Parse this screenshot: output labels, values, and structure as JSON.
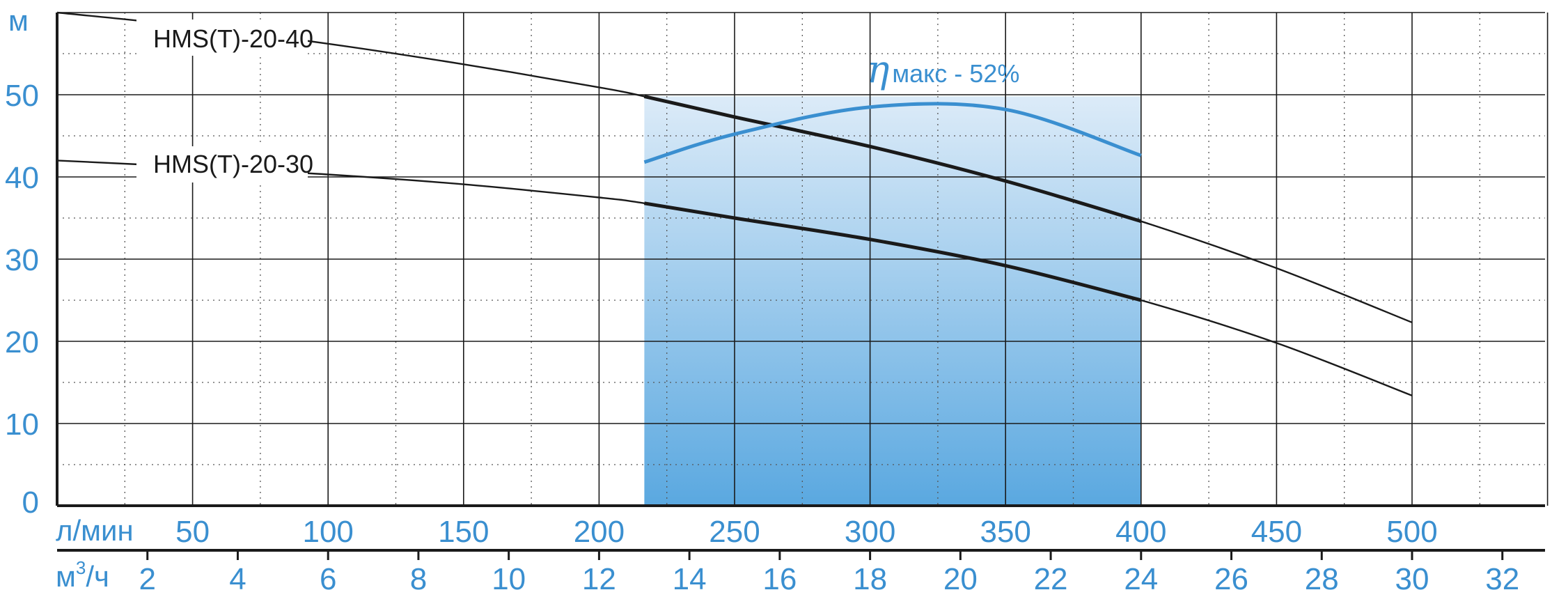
{
  "chart_data": {
    "type": "line",
    "y_unit": "м",
    "x_unit": "л/мин",
    "x2_unit_base": "м",
    "x2_unit_sup": "3",
    "x2_unit_tail": "/ч",
    "ylim": [
      0,
      60
    ],
    "xlim": [
      0,
      550
    ],
    "y_ticks": [
      0,
      10,
      20,
      30,
      40,
      50
    ],
    "x_ticks": [
      50,
      100,
      150,
      200,
      250,
      300,
      350,
      400,
      450,
      500
    ],
    "x2_ticks": [
      2,
      4,
      6,
      8,
      10,
      12,
      14,
      16,
      18,
      20,
      22,
      24,
      26,
      28,
      30,
      32
    ],
    "grid": true,
    "operating_range": [
      216.7,
      400
    ],
    "series": [
      {
        "name": "HMS(T)-20-40",
        "x": [
          0,
          50,
          100,
          150,
          200,
          216.7,
          250,
          300,
          350,
          400,
          450,
          500
        ],
        "y": [
          60,
          58.3,
          56.2,
          53.7,
          50.9,
          49.8,
          47.3,
          43.7,
          39.5,
          34.6,
          28.9,
          22.3
        ]
      },
      {
        "name": "HMS(T)-20-30",
        "x": [
          0,
          50,
          100,
          150,
          200,
          216.7,
          250,
          300,
          350,
          400,
          450,
          500
        ],
        "y": [
          42.0,
          41.2,
          40.3,
          39.1,
          37.5,
          36.8,
          35.0,
          32.4,
          29.2,
          25.0,
          19.8,
          13.4
        ]
      }
    ],
    "efficiency": {
      "symbol": "η",
      "label": "макс - 52%",
      "x": [
        216.7,
        250,
        300,
        350,
        400
      ],
      "y": [
        41.8,
        45.2,
        48.5,
        48.2,
        42.6
      ]
    },
    "colors": {
      "accent": "#3a8fd0",
      "curve": "#1a1a1a",
      "grid": "#1a1a1a",
      "fill_top": "#dcebf8",
      "fill_bottom": "#5aa8e0"
    }
  }
}
